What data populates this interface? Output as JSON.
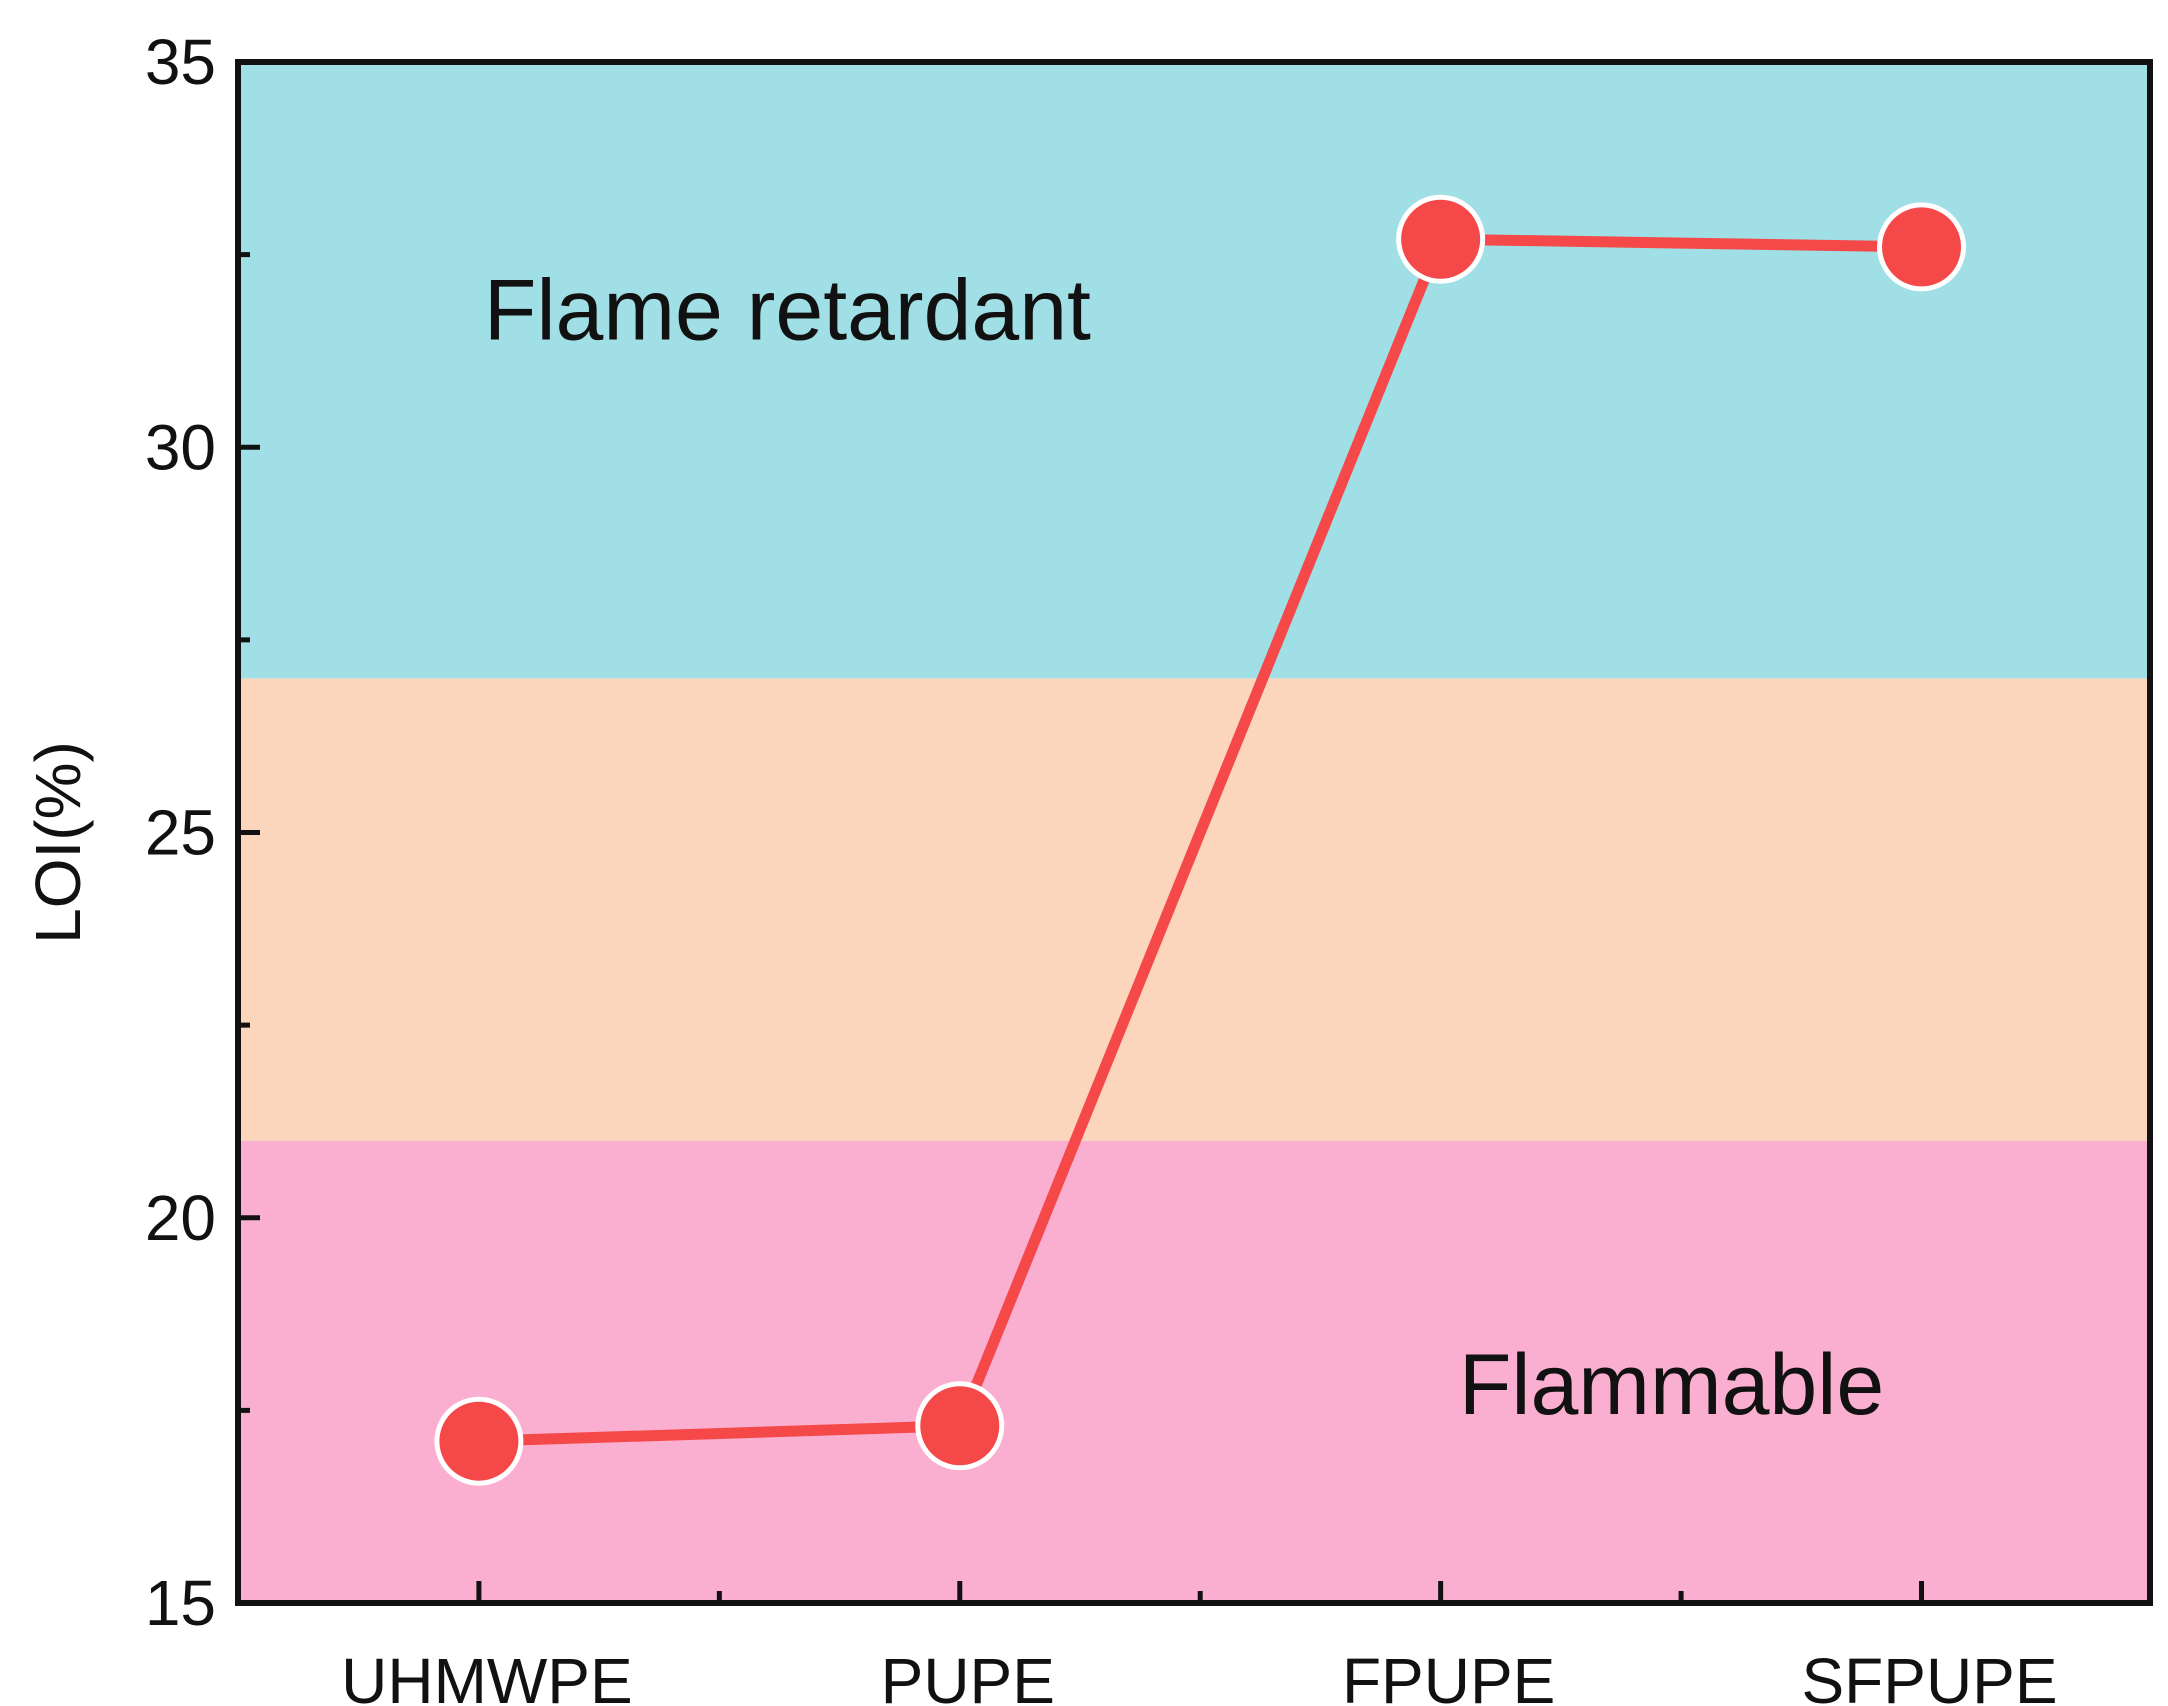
{
  "chart_data": {
    "type": "line",
    "title": "",
    "xlabel": "",
    "ylabel": "LOI(%)",
    "ylim": [
      15,
      35
    ],
    "yticks": [
      15,
      20,
      25,
      30,
      35
    ],
    "y_minor_step": 2.5,
    "grid": false,
    "legend": "none",
    "categories": [
      "UHMWPE",
      "PUPE",
      "FPUPE",
      "SFPUPE"
    ],
    "series": [
      {
        "values": [
          17.1,
          17.3,
          32.7,
          32.6
        ],
        "color": "#f54848"
      }
    ],
    "regions": [
      {
        "label": "Flammable",
        "from": 15,
        "to": 21,
        "color": "#fbafd0"
      },
      {
        "label": "",
        "from": 21,
        "to": 27,
        "color": "#fbd6bc"
      },
      {
        "label": "Flame retardant",
        "from": 27,
        "to": 35,
        "color": "#a0dfe6"
      }
    ]
  }
}
